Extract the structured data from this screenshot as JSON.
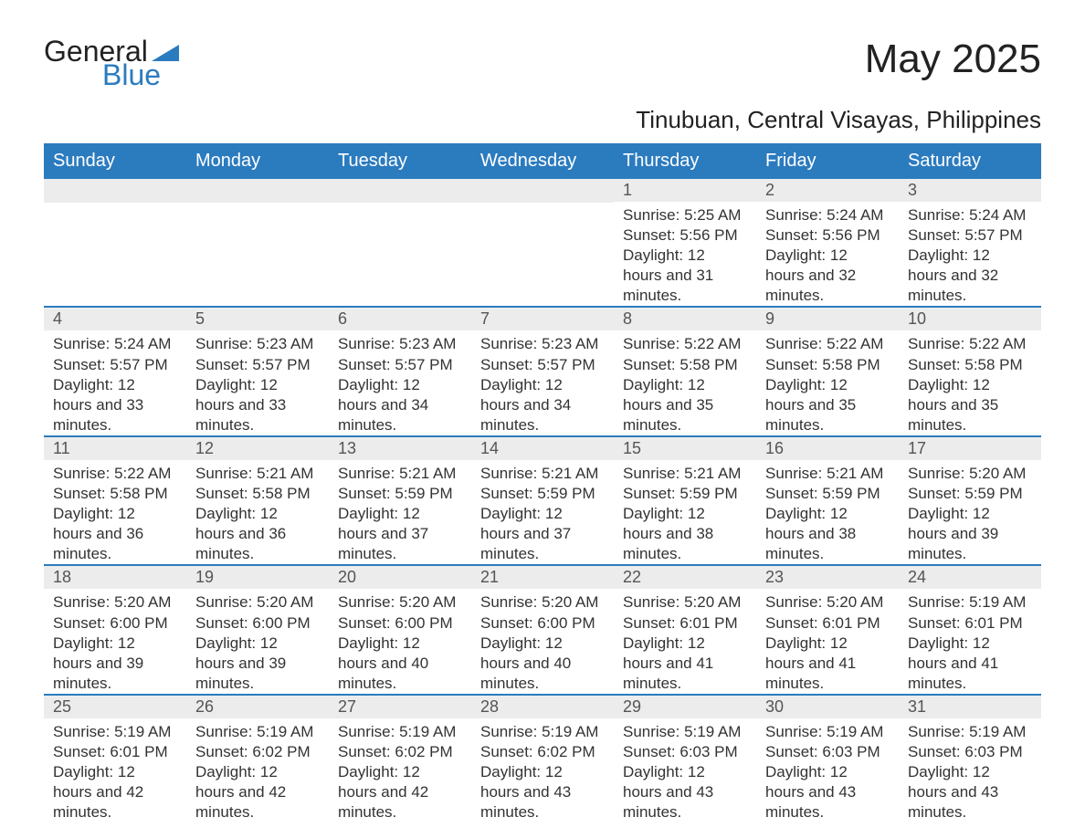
{
  "logo": {
    "text_general": "General",
    "text_blue": "Blue",
    "triangle_color": "#2b7bbf"
  },
  "title": "May 2025",
  "subtitle": "Tinubuan, Central Visayas, Philippines",
  "colors": {
    "header_bg": "#2b7bbf",
    "header_text": "#ffffff",
    "daynum_bg": "#ececec",
    "row_border": "#2b7bbf",
    "body_text": "#333333"
  },
  "weekdays": [
    "Sunday",
    "Monday",
    "Tuesday",
    "Wednesday",
    "Thursday",
    "Friday",
    "Saturday"
  ],
  "weeks": [
    [
      null,
      null,
      null,
      null,
      {
        "n": "1",
        "sunrise": "5:25 AM",
        "sunset": "5:56 PM",
        "daylight": "12 hours and 31 minutes."
      },
      {
        "n": "2",
        "sunrise": "5:24 AM",
        "sunset": "5:56 PM",
        "daylight": "12 hours and 32 minutes."
      },
      {
        "n": "3",
        "sunrise": "5:24 AM",
        "sunset": "5:57 PM",
        "daylight": "12 hours and 32 minutes."
      }
    ],
    [
      {
        "n": "4",
        "sunrise": "5:24 AM",
        "sunset": "5:57 PM",
        "daylight": "12 hours and 33 minutes."
      },
      {
        "n": "5",
        "sunrise": "5:23 AM",
        "sunset": "5:57 PM",
        "daylight": "12 hours and 33 minutes."
      },
      {
        "n": "6",
        "sunrise": "5:23 AM",
        "sunset": "5:57 PM",
        "daylight": "12 hours and 34 minutes."
      },
      {
        "n": "7",
        "sunrise": "5:23 AM",
        "sunset": "5:57 PM",
        "daylight": "12 hours and 34 minutes."
      },
      {
        "n": "8",
        "sunrise": "5:22 AM",
        "sunset": "5:58 PM",
        "daylight": "12 hours and 35 minutes."
      },
      {
        "n": "9",
        "sunrise": "5:22 AM",
        "sunset": "5:58 PM",
        "daylight": "12 hours and 35 minutes."
      },
      {
        "n": "10",
        "sunrise": "5:22 AM",
        "sunset": "5:58 PM",
        "daylight": "12 hours and 35 minutes."
      }
    ],
    [
      {
        "n": "11",
        "sunrise": "5:22 AM",
        "sunset": "5:58 PM",
        "daylight": "12 hours and 36 minutes."
      },
      {
        "n": "12",
        "sunrise": "5:21 AM",
        "sunset": "5:58 PM",
        "daylight": "12 hours and 36 minutes."
      },
      {
        "n": "13",
        "sunrise": "5:21 AM",
        "sunset": "5:59 PM",
        "daylight": "12 hours and 37 minutes."
      },
      {
        "n": "14",
        "sunrise": "5:21 AM",
        "sunset": "5:59 PM",
        "daylight": "12 hours and 37 minutes."
      },
      {
        "n": "15",
        "sunrise": "5:21 AM",
        "sunset": "5:59 PM",
        "daylight": "12 hours and 38 minutes."
      },
      {
        "n": "16",
        "sunrise": "5:21 AM",
        "sunset": "5:59 PM",
        "daylight": "12 hours and 38 minutes."
      },
      {
        "n": "17",
        "sunrise": "5:20 AM",
        "sunset": "5:59 PM",
        "daylight": "12 hours and 39 minutes."
      }
    ],
    [
      {
        "n": "18",
        "sunrise": "5:20 AM",
        "sunset": "6:00 PM",
        "daylight": "12 hours and 39 minutes."
      },
      {
        "n": "19",
        "sunrise": "5:20 AM",
        "sunset": "6:00 PM",
        "daylight": "12 hours and 39 minutes."
      },
      {
        "n": "20",
        "sunrise": "5:20 AM",
        "sunset": "6:00 PM",
        "daylight": "12 hours and 40 minutes."
      },
      {
        "n": "21",
        "sunrise": "5:20 AM",
        "sunset": "6:00 PM",
        "daylight": "12 hours and 40 minutes."
      },
      {
        "n": "22",
        "sunrise": "5:20 AM",
        "sunset": "6:01 PM",
        "daylight": "12 hours and 41 minutes."
      },
      {
        "n": "23",
        "sunrise": "5:20 AM",
        "sunset": "6:01 PM",
        "daylight": "12 hours and 41 minutes."
      },
      {
        "n": "24",
        "sunrise": "5:19 AM",
        "sunset": "6:01 PM",
        "daylight": "12 hours and 41 minutes."
      }
    ],
    [
      {
        "n": "25",
        "sunrise": "5:19 AM",
        "sunset": "6:01 PM",
        "daylight": "12 hours and 42 minutes."
      },
      {
        "n": "26",
        "sunrise": "5:19 AM",
        "sunset": "6:02 PM",
        "daylight": "12 hours and 42 minutes."
      },
      {
        "n": "27",
        "sunrise": "5:19 AM",
        "sunset": "6:02 PM",
        "daylight": "12 hours and 42 minutes."
      },
      {
        "n": "28",
        "sunrise": "5:19 AM",
        "sunset": "6:02 PM",
        "daylight": "12 hours and 43 minutes."
      },
      {
        "n": "29",
        "sunrise": "5:19 AM",
        "sunset": "6:03 PM",
        "daylight": "12 hours and 43 minutes."
      },
      {
        "n": "30",
        "sunrise": "5:19 AM",
        "sunset": "6:03 PM",
        "daylight": "12 hours and 43 minutes."
      },
      {
        "n": "31",
        "sunrise": "5:19 AM",
        "sunset": "6:03 PM",
        "daylight": "12 hours and 43 minutes."
      }
    ]
  ],
  "labels": {
    "sunrise": "Sunrise: ",
    "sunset": "Sunset: ",
    "daylight": "Daylight: "
  }
}
